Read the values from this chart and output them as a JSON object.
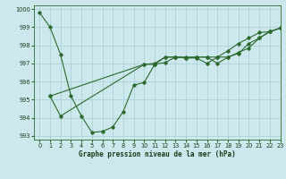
{
  "title": "Graphe pression niveau de la mer (hPa)",
  "bg_color": "#cce8ec",
  "grid_color": "#a8cdd4",
  "line_color": "#2d6a2d",
  "xlim": [
    -0.5,
    23
  ],
  "ylim": [
    992.8,
    1000.2
  ],
  "yticks": [
    993,
    994,
    995,
    996,
    997,
    998,
    999,
    1000
  ],
  "xticks": [
    0,
    1,
    2,
    3,
    4,
    5,
    6,
    7,
    8,
    9,
    10,
    11,
    12,
    13,
    14,
    15,
    16,
    17,
    18,
    19,
    20,
    21,
    22,
    23
  ],
  "line1_x": [
    0,
    1,
    2,
    3,
    4,
    5,
    6,
    7,
    8,
    9,
    10,
    11,
    12,
    13,
    14,
    15,
    16,
    17,
    18,
    19,
    20,
    21,
    22,
    23
  ],
  "line1_y": [
    999.8,
    999.0,
    997.5,
    995.2,
    994.1,
    993.2,
    993.25,
    993.5,
    994.35,
    995.8,
    995.95,
    996.95,
    997.35,
    997.35,
    997.3,
    997.3,
    997.0,
    997.35,
    997.7,
    998.1,
    998.4,
    998.7,
    998.75,
    998.95
  ],
  "line2_x": [
    1,
    2,
    10,
    11,
    12,
    13,
    14,
    15,
    16,
    17,
    18,
    19,
    20,
    21,
    22,
    23
  ],
  "line2_y": [
    995.2,
    994.1,
    996.95,
    997.0,
    997.35,
    997.35,
    997.3,
    997.35,
    997.35,
    997.0,
    997.35,
    997.55,
    998.1,
    998.4,
    998.75,
    998.95
  ],
  "line3_x": [
    1,
    10,
    11,
    12,
    13,
    14,
    15,
    16,
    17,
    18,
    19,
    20,
    21,
    22,
    23
  ],
  "line3_y": [
    995.2,
    996.95,
    996.95,
    997.05,
    997.35,
    997.35,
    997.35,
    997.35,
    997.35,
    997.35,
    997.6,
    997.85,
    998.4,
    998.75,
    998.95
  ],
  "title_fontsize": 5.5,
  "tick_fontsize": 4.8,
  "linewidth": 0.8,
  "markersize": 1.8
}
